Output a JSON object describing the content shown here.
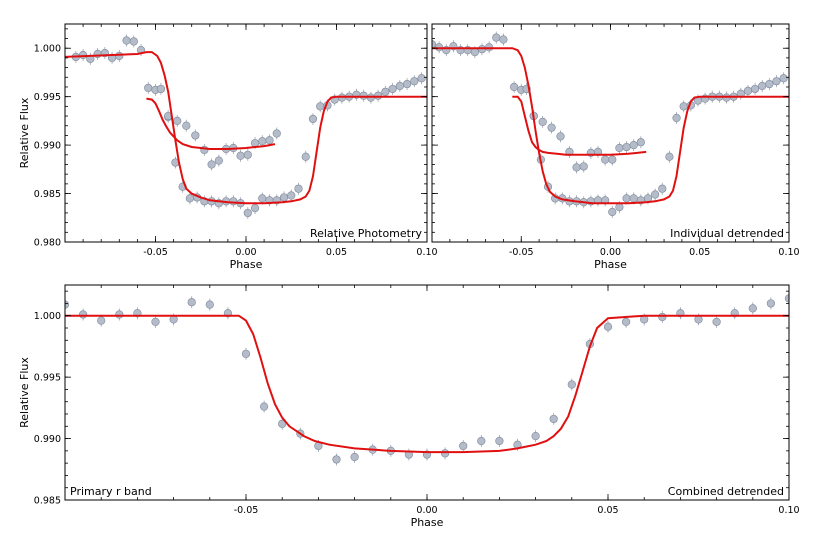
{
  "chart_data": [
    {
      "type": "scatter",
      "panel": "top-left",
      "annotation": "Relative Photometry",
      "xlabel": "Phase",
      "ylabel": "Relative Flux",
      "xlim": [
        -0.1,
        0.1
      ],
      "ylim": [
        0.98,
        1.0025
      ],
      "xticks": [
        "-0.05",
        "0.00",
        "0.05",
        "0.10"
      ],
      "xtick_values": [
        -0.05,
        0.0,
        0.05,
        0.1
      ],
      "yticks": [
        "0.980",
        "0.985",
        "0.990",
        "0.995",
        "1.000"
      ],
      "ytick_values": [
        0.98,
        0.985,
        0.99,
        0.995,
        1.0
      ],
      "series": [
        {
          "x": [
            -0.094,
            -0.09,
            -0.086,
            -0.082,
            -0.078,
            -0.074,
            -0.07,
            -0.066,
            -0.062,
            -0.058,
            -0.054,
            -0.05,
            -0.047,
            -0.043,
            -0.039,
            -0.035,
            -0.031,
            -0.027,
            -0.023,
            -0.019,
            -0.015,
            -0.011,
            -0.007,
            -0.003,
            0.001,
            0.005,
            0.009,
            0.013,
            0.017,
            0.021,
            0.025,
            0.029,
            0.033,
            0.037,
            0.041,
            0.045,
            0.049,
            0.053,
            0.057,
            0.061,
            0.065,
            0.069,
            0.073,
            0.077,
            0.081,
            0.085,
            0.089,
            0.093,
            0.097
          ],
          "y": [
            0.9991,
            0.9993,
            0.9989,
            0.9994,
            0.9995,
            0.999,
            0.9992,
            1.0008,
            1.0007,
            0.9998,
            0.9959,
            0.9957,
            0.9958,
            0.9929,
            0.9882,
            0.9857,
            0.9845,
            0.9846,
            0.9842,
            0.9842,
            0.984,
            0.9842,
            0.9842,
            0.984,
            0.983,
            0.9835,
            0.9845,
            0.9843,
            0.9843,
            0.9846,
            0.9848,
            0.9855,
            0.9888,
            0.9927,
            0.994,
            0.9941,
            0.9947,
            0.9949,
            0.995,
            0.9952,
            0.9951,
            0.9949,
            0.9951,
            0.9955,
            0.9958,
            0.9961,
            0.9963,
            0.9966,
            0.9969
          ]
        },
        {
          "x": [
            -0.043,
            -0.038,
            -0.033,
            -0.028,
            -0.023,
            -0.019,
            -0.015,
            -0.011,
            -0.007,
            -0.003,
            0.001,
            0.005,
            0.009,
            0.013,
            0.017
          ],
          "y": [
            0.993,
            0.9925,
            0.992,
            0.991,
            0.9895,
            0.988,
            0.9884,
            0.9896,
            0.9897,
            0.9889,
            0.989,
            0.9902,
            0.9904,
            0.9905,
            0.9912
          ]
        }
      ],
      "models": [
        {
          "x": [
            -0.1,
            -0.06,
            -0.055,
            -0.052,
            -0.049,
            -0.047,
            -0.045,
            -0.043,
            -0.041,
            -0.039,
            -0.037,
            -0.035,
            -0.033,
            -0.03,
            -0.025,
            -0.02,
            -0.01,
            0.0,
            0.01,
            0.02,
            0.025,
            0.03,
            0.033,
            0.035,
            0.037,
            0.039,
            0.041,
            0.043,
            0.045,
            0.047,
            0.05,
            0.06,
            0.1
          ],
          "y": [
            0.9991,
            0.9994,
            0.9996,
            0.9996,
            0.9992,
            0.9985,
            0.9972,
            0.9955,
            0.993,
            0.9905,
            0.9882,
            0.9865,
            0.9855,
            0.985,
            0.9846,
            0.9843,
            0.9841,
            0.984,
            0.984,
            0.9841,
            0.9842,
            0.9844,
            0.9847,
            0.9853,
            0.9868,
            0.9893,
            0.9918,
            0.9935,
            0.9945,
            0.9949,
            0.995,
            0.995,
            0.995
          ]
        },
        {
          "x": [
            -0.055,
            -0.052,
            -0.05,
            -0.048,
            -0.046,
            -0.044,
            -0.042,
            -0.04,
            -0.038,
            -0.035,
            -0.03,
            -0.025,
            -0.02,
            -0.01,
            0.0,
            0.01,
            0.016
          ],
          "y": [
            0.9948,
            0.9947,
            0.9943,
            0.9935,
            0.9926,
            0.9919,
            0.9913,
            0.9909,
            0.9905,
            0.9901,
            0.9898,
            0.9897,
            0.9896,
            0.9896,
            0.9897,
            0.9899,
            0.9901
          ]
        }
      ],
      "grid": false
    },
    {
      "type": "scatter",
      "panel": "top-right",
      "annotation": "Individual detrended",
      "xlabel": "Phase",
      "ylabel": "",
      "xlim": [
        -0.1,
        0.1
      ],
      "ylim": [
        0.98,
        1.0025
      ],
      "xticks": [
        "-0.05",
        "0.00",
        "0.05",
        "0.10"
      ],
      "xtick_values": [
        -0.05,
        0.0,
        0.05,
        0.1
      ],
      "series": [
        {
          "x": [
            -0.1,
            -0.096,
            -0.092,
            -0.088,
            -0.084,
            -0.08,
            -0.076,
            -0.072,
            -0.068,
            -0.064,
            -0.06,
            -0.054,
            -0.05,
            -0.047,
            -0.043,
            -0.039,
            -0.035,
            -0.031,
            -0.027,
            -0.023,
            -0.019,
            -0.015,
            -0.011,
            -0.007,
            -0.003,
            0.001,
            0.005,
            0.009,
            0.013,
            0.017,
            0.021,
            0.025,
            0.029,
            0.033,
            0.037,
            0.041,
            0.045,
            0.049,
            0.053,
            0.057,
            0.061,
            0.065,
            0.069,
            0.073,
            0.077,
            0.081,
            0.085,
            0.089,
            0.093,
            0.097
          ],
          "y": [
            1.0004,
            1.0001,
            0.9998,
            1.0002,
            0.9998,
            0.9998,
            0.9996,
            0.9999,
            1.0001,
            1.0011,
            1.0009,
            0.996,
            0.9957,
            0.9958,
            0.993,
            0.9885,
            0.9857,
            0.9845,
            0.9845,
            0.9842,
            0.9842,
            0.9841,
            0.9842,
            0.9843,
            0.9843,
            0.9831,
            0.9836,
            0.9845,
            0.9845,
            0.9843,
            0.9845,
            0.9849,
            0.9855,
            0.9888,
            0.9928,
            0.994,
            0.9941,
            0.9946,
            0.9948,
            0.995,
            0.995,
            0.9949,
            0.995,
            0.9953,
            0.9956,
            0.9958,
            0.9961,
            0.9963,
            0.9966,
            0.9969
          ]
        },
        {
          "x": [
            -0.043,
            -0.038,
            -0.033,
            -0.028,
            -0.023,
            -0.019,
            -0.015,
            -0.011,
            -0.007,
            -0.003,
            0.001,
            0.005,
            0.009,
            0.013,
            0.017
          ],
          "y": [
            0.993,
            0.9924,
            0.9918,
            0.9909,
            0.9893,
            0.9877,
            0.9878,
            0.9892,
            0.9893,
            0.9885,
            0.9885,
            0.9897,
            0.9898,
            0.99,
            0.9903
          ]
        }
      ],
      "models": [
        {
          "x": [
            -0.1,
            -0.06,
            -0.055,
            -0.052,
            -0.05,
            -0.048,
            -0.046,
            -0.044,
            -0.042,
            -0.04,
            -0.038,
            -0.036,
            -0.034,
            -0.031,
            -0.027,
            -0.02,
            -0.01,
            0.0,
            0.01,
            0.02,
            0.025,
            0.03,
            0.033,
            0.035,
            0.037,
            0.039,
            0.041,
            0.043,
            0.045,
            0.047,
            0.05,
            0.06,
            0.1
          ],
          "y": [
            1.0,
            1.0,
            1.0,
            0.9998,
            0.9992,
            0.998,
            0.9962,
            0.994,
            0.9915,
            0.9892,
            0.9873,
            0.986,
            0.9852,
            0.9847,
            0.9844,
            0.9842,
            0.984,
            0.984,
            0.984,
            0.9841,
            0.9842,
            0.9844,
            0.9847,
            0.9853,
            0.9868,
            0.9893,
            0.9918,
            0.9935,
            0.9945,
            0.9949,
            0.995,
            0.995,
            0.995
          ]
        },
        {
          "x": [
            -0.055,
            -0.052,
            -0.05,
            -0.048,
            -0.046,
            -0.044,
            -0.042,
            -0.04,
            -0.038,
            -0.035,
            -0.03,
            -0.025,
            -0.02,
            -0.01,
            0.0,
            0.01,
            0.02
          ],
          "y": [
            0.995,
            0.995,
            0.9945,
            0.993,
            0.9915,
            0.9903,
            0.9898,
            0.9895,
            0.9893,
            0.9892,
            0.9891,
            0.989,
            0.989,
            0.989,
            0.989,
            0.9891,
            0.9893
          ]
        }
      ],
      "grid": false
    },
    {
      "type": "scatter",
      "panel": "bottom",
      "annotation_left": "Primary r band",
      "annotation_right": "Combined detrended",
      "xlabel": "Phase",
      "ylabel": "Relative Flux",
      "xlim": [
        -0.1,
        0.1
      ],
      "ylim": [
        0.985,
        1.0025
      ],
      "xticks": [
        "-0.05",
        "0.00",
        "0.05",
        "0.10"
      ],
      "xtick_values": [
        -0.05,
        0.0,
        0.05,
        0.1
      ],
      "yticks": [
        "0.985",
        "0.990",
        "0.995",
        "1.000"
      ],
      "ytick_values": [
        0.985,
        0.99,
        0.995,
        1.0
      ],
      "series": [
        {
          "x": [
            -0.1,
            -0.095,
            -0.09,
            -0.085,
            -0.08,
            -0.075,
            -0.07,
            -0.065,
            -0.06,
            -0.055,
            -0.05,
            -0.045,
            -0.04,
            -0.035,
            -0.03,
            -0.025,
            -0.02,
            -0.015,
            -0.01,
            -0.005,
            0.0,
            0.005,
            0.01,
            0.015,
            0.02,
            0.025,
            0.03,
            0.035,
            0.04,
            0.045,
            0.05,
            0.055,
            0.06,
            0.065,
            0.07,
            0.075,
            0.08,
            0.085,
            0.09,
            0.095,
            0.1
          ],
          "y": [
            1.0009,
            1.0001,
            0.9996,
            1.0001,
            1.0002,
            0.9995,
            0.9997,
            1.0011,
            1.0009,
            1.0002,
            0.9969,
            0.9926,
            0.9912,
            0.9904,
            0.9894,
            0.9883,
            0.9885,
            0.9891,
            0.989,
            0.9887,
            0.9887,
            0.9888,
            0.9894,
            0.9898,
            0.9898,
            0.9895,
            0.9902,
            0.9916,
            0.9944,
            0.9977,
            0.9991,
            0.9995,
            0.9997,
            0.9999,
            1.0002,
            0.9997,
            0.9995,
            1.0002,
            1.0006,
            1.001,
            1.0014
          ]
        }
      ],
      "models": [
        {
          "x": [
            -0.1,
            -0.052,
            -0.05,
            -0.048,
            -0.046,
            -0.044,
            -0.042,
            -0.04,
            -0.038,
            -0.036,
            -0.034,
            -0.031,
            -0.027,
            -0.02,
            -0.01,
            0.0,
            0.01,
            0.02,
            0.025,
            0.03,
            0.033,
            0.035,
            0.037,
            0.039,
            0.041,
            0.043,
            0.045,
            0.047,
            0.05,
            0.06,
            0.1
          ],
          "y": [
            1.0,
            1.0,
            0.9996,
            0.9985,
            0.9966,
            0.9945,
            0.9928,
            0.9917,
            0.991,
            0.9906,
            0.9902,
            0.9898,
            0.9895,
            0.9892,
            0.989,
            0.9889,
            0.9889,
            0.989,
            0.9892,
            0.9895,
            0.9898,
            0.9902,
            0.9908,
            0.9918,
            0.9935,
            0.9955,
            0.9975,
            0.999,
            0.9998,
            1.0,
            1.0
          ]
        }
      ],
      "grid": false
    }
  ]
}
